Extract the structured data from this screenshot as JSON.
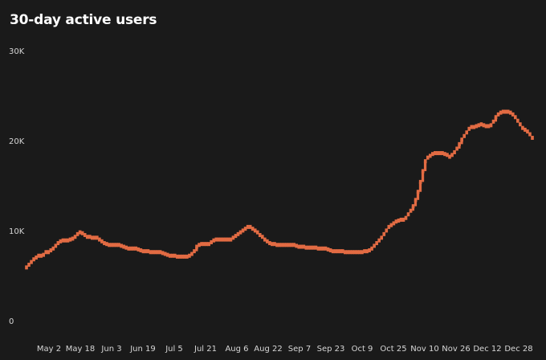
{
  "title": "30-day active users",
  "colors": {
    "background": "#1a1a1a",
    "series": "#e26b43",
    "text": "#ffffff",
    "tick_text": "#d6d6d6"
  },
  "chart_data": {
    "type": "line",
    "title": "30-day active users",
    "xlabel": "",
    "ylabel": "",
    "grid": false,
    "legend": "none",
    "ylim": [
      0,
      30000
    ],
    "y_ticks": [
      {
        "value": 0,
        "label": "0"
      },
      {
        "value": 10000,
        "label": "10K"
      },
      {
        "value": 20000,
        "label": "20K"
      },
      {
        "value": 30000,
        "label": "30K"
      }
    ],
    "x_ticks": [
      "May 2",
      "May 18",
      "Jun 3",
      "Jun 19",
      "Jul 5",
      "Jul 21",
      "Aug 6",
      "Aug 22",
      "Sep 7",
      "Sep 23",
      "Oct 9",
      "Oct 25",
      "Nov 10",
      "Nov 26",
      "Dec 12",
      "Dec 28"
    ],
    "start_date": "2023-04-25",
    "series": [
      {
        "values": [
          6000,
          6300,
          6600,
          6900,
          7100,
          7300,
          7300,
          7400,
          7700,
          7700,
          7900,
          8100,
          8400,
          8700,
          8900,
          9000,
          9000,
          9000,
          9100,
          9200,
          9400,
          9700,
          9900,
          9800,
          9600,
          9400,
          9400,
          9300,
          9300,
          9300,
          9100,
          8900,
          8700,
          8600,
          8500,
          8500,
          8500,
          8500,
          8500,
          8400,
          8300,
          8200,
          8100,
          8100,
          8100,
          8100,
          8000,
          7900,
          7800,
          7800,
          7800,
          7700,
          7700,
          7700,
          7700,
          7700,
          7600,
          7500,
          7400,
          7300,
          7300,
          7300,
          7200,
          7200,
          7200,
          7200,
          7200,
          7300,
          7500,
          7800,
          8300,
          8500,
          8600,
          8600,
          8600,
          8600,
          8800,
          9000,
          9100,
          9100,
          9100,
          9100,
          9100,
          9100,
          9100,
          9300,
          9500,
          9700,
          9900,
          10100,
          10300,
          10500,
          10500,
          10300,
          10100,
          9900,
          9600,
          9400,
          9100,
          8900,
          8700,
          8600,
          8600,
          8500,
          8500,
          8500,
          8500,
          8500,
          8500,
          8500,
          8500,
          8400,
          8300,
          8300,
          8300,
          8200,
          8200,
          8200,
          8200,
          8200,
          8100,
          8100,
          8100,
          8100,
          8000,
          7900,
          7800,
          7800,
          7800,
          7800,
          7800,
          7700,
          7700,
          7700,
          7700,
          7700,
          7700,
          7700,
          7700,
          7800,
          7800,
          7900,
          8100,
          8400,
          8700,
          9000,
          9300,
          9700,
          10100,
          10500,
          10700,
          10900,
          11100,
          11200,
          11300,
          11300,
          11500,
          11900,
          12300,
          12800,
          13500,
          14400,
          15500,
          16700,
          17800,
          18200,
          18400,
          18600,
          18700,
          18700,
          18700,
          18700,
          18600,
          18500,
          18300,
          18500,
          18800,
          19200,
          19700,
          20200,
          20600,
          21000,
          21400,
          21600,
          21600,
          21700,
          21800,
          21900,
          21800,
          21700,
          21700,
          21800,
          22200,
          22700,
          23000,
          23200,
          23300,
          23300,
          23300,
          23200,
          23000,
          22700,
          22300,
          21900,
          21500,
          21300,
          21100,
          20800,
          20400
        ]
      }
    ]
  }
}
